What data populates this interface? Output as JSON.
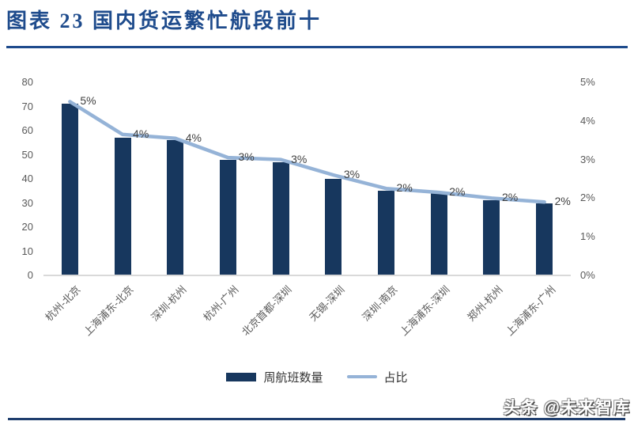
{
  "page": {
    "title": "图表 23  国内货运繁忙航段前十",
    "watermark": "头条 @未来智库"
  },
  "chart_data": {
    "type": "bar",
    "subtype": "combo-bar-line",
    "title": "国内货运繁忙航段前十",
    "categories": [
      "杭州-北京",
      "上海浦东-北京",
      "深圳-杭州",
      "杭州-广州",
      "北京首都-深圳",
      "无锡-深圳",
      "深圳-南京",
      "上海浦东-深圳",
      "郑州-杭州",
      "上海浦东-广州"
    ],
    "series": [
      {
        "name": "周航班数量",
        "type": "bar",
        "axis": "left",
        "color": "#17375E",
        "values": [
          71,
          57,
          56,
          48,
          47,
          40,
          35,
          34,
          31,
          30
        ]
      },
      {
        "name": "占比",
        "type": "line",
        "axis": "right",
        "color": "#95B3D7",
        "values_percent": [
          4.5,
          3.65,
          3.55,
          3.05,
          3.0,
          2.6,
          2.25,
          2.15,
          2.0,
          1.9
        ],
        "point_labels": [
          "5%",
          "4%",
          "4%",
          "3%",
          "3%",
          "3%",
          "2%",
          "2%",
          "2%",
          "2%"
        ]
      }
    ],
    "left_axis": {
      "min": 0,
      "max": 80,
      "step": 10,
      "tick_labels": [
        "80",
        "70",
        "60",
        "50",
        "40",
        "30",
        "20",
        "10",
        "0"
      ]
    },
    "right_axis": {
      "min_percent": 0,
      "max_percent": 5,
      "step_percent": 1,
      "tick_labels": [
        "5%",
        "4%",
        "3%",
        "2%",
        "1%",
        "0%"
      ]
    },
    "legend": {
      "position": "bottom",
      "entries": [
        "周航班数量",
        "占比"
      ]
    },
    "grid": false,
    "xlabel": "",
    "ylabel_left": "",
    "ylabel_right": ""
  },
  "colors": {
    "title_blue": "#1E4B8C",
    "bar_navy": "#17375E",
    "line_blue": "#95B3D7",
    "axis_text": "#595959",
    "data_label": "#404040",
    "baseline": "#D9D9D9",
    "footer_line": "#1F3E6E"
  }
}
